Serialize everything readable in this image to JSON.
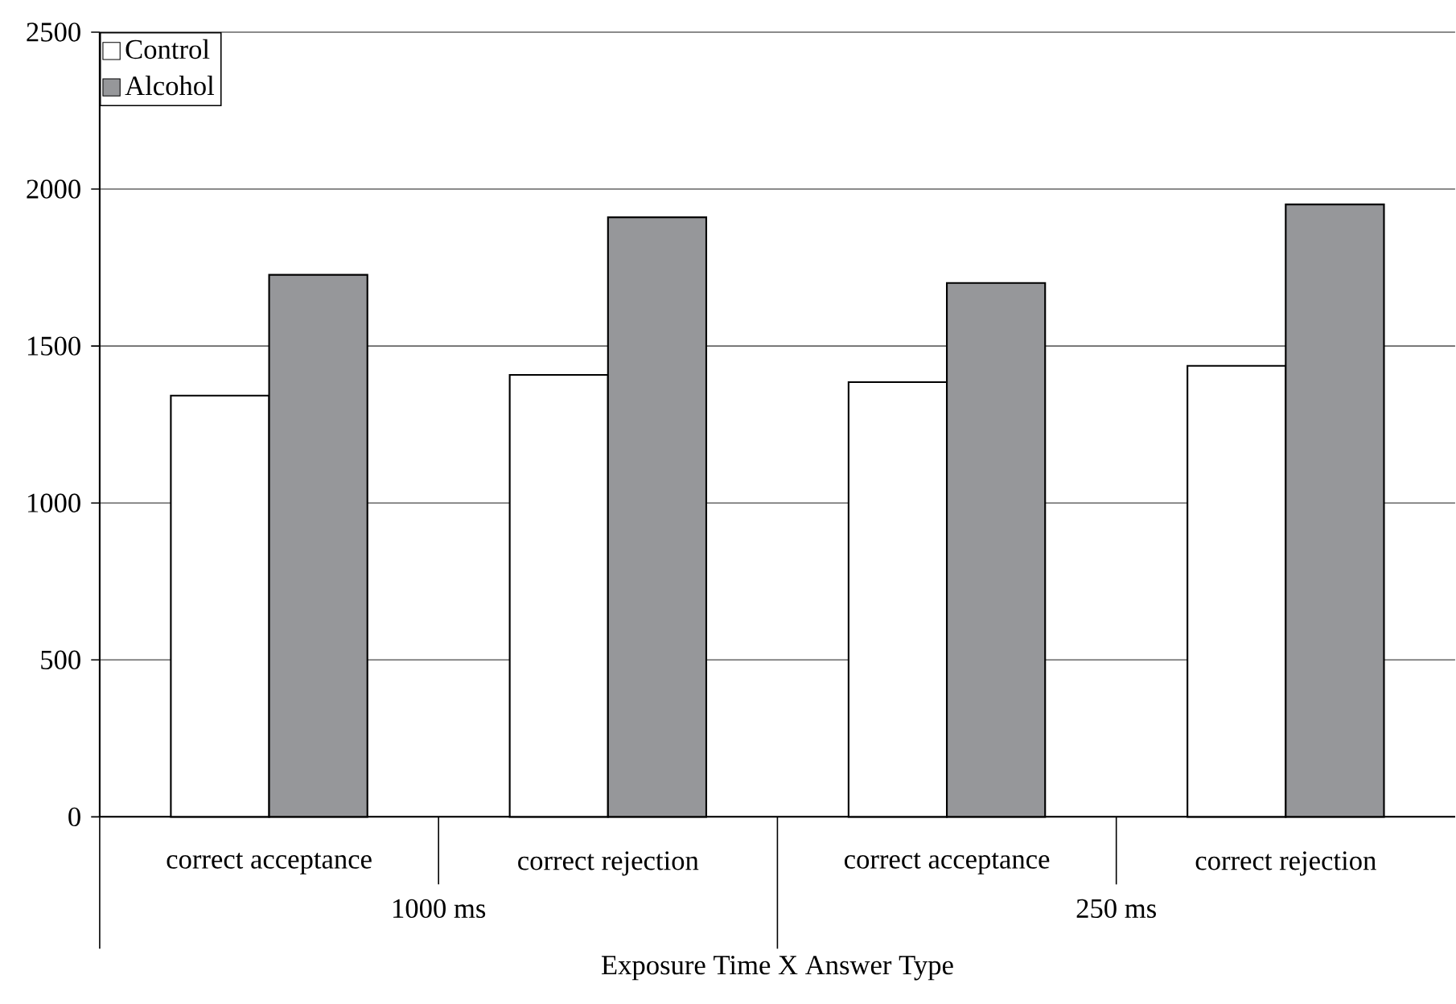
{
  "chart_data": {
    "type": "bar",
    "xlabel": "Exposure Time X Answer Type",
    "categories": [
      "correct acceptance",
      "correct rejection",
      "correct acceptance",
      "correct rejection"
    ],
    "annotations": [
      "1000 ms",
      "250 ms"
    ],
    "series": [
      {
        "name": "Control",
        "color": "#ffffff",
        "values": [
          1342,
          1408,
          1385,
          1437
        ]
      },
      {
        "name": "Alcohol",
        "color": "#96979a",
        "values": [
          1727,
          1910,
          1701,
          1951
        ]
      }
    ],
    "ylim": [
      0,
      2500
    ],
    "yticks": [
      0,
      500,
      1000,
      1500,
      2000,
      2500
    ],
    "grid": "y",
    "legend": "top left"
  }
}
